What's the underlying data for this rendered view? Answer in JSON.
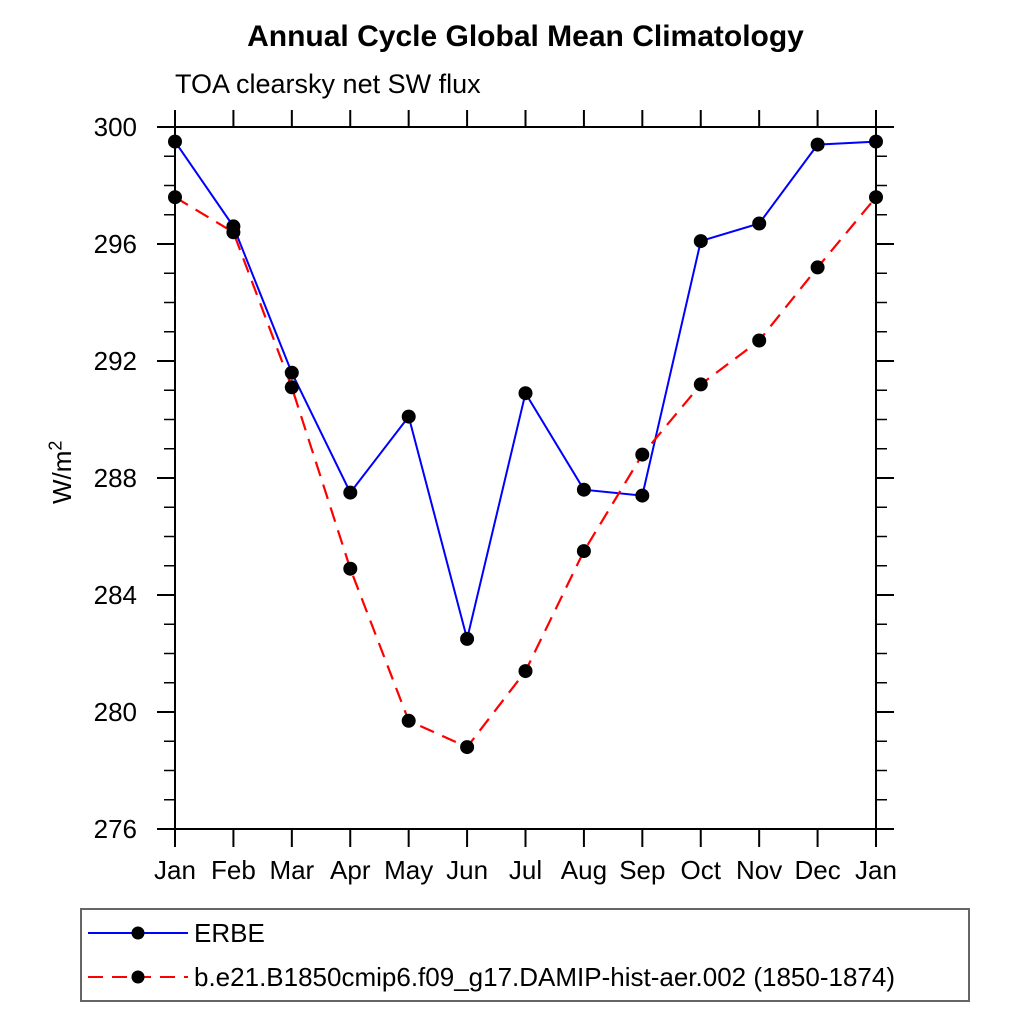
{
  "title": "Annual Cycle Global Mean Climatology",
  "subtitle": "TOA clearsky net SW flux",
  "ylabel": {
    "base": "W/m",
    "sup": "2"
  },
  "chart_data": {
    "type": "line",
    "title": "Annual Cycle Global Mean Climatology",
    "subtitle": "TOA clearsky net SW flux",
    "ylabel": "W/m²",
    "xlabel": "",
    "categories": [
      "Jan",
      "Feb",
      "Mar",
      "Apr",
      "May",
      "Jun",
      "Jul",
      "Aug",
      "Sep",
      "Oct",
      "Nov",
      "Dec",
      "Jan"
    ],
    "ylim": [
      276,
      300
    ],
    "ytick_major_step": 4,
    "ytick_minor_step": 1,
    "ytick_labels": [
      "276",
      "280",
      "284",
      "288",
      "292",
      "296",
      "300"
    ],
    "grid": false,
    "legend_position": "boxed-below-left",
    "series": [
      {
        "name": "ERBE",
        "color": "#0000ff",
        "line_style": "solid",
        "marker": "filled-circle",
        "marker_color": "#000000",
        "values": [
          299.5,
          296.6,
          291.6,
          287.5,
          290.1,
          282.5,
          290.9,
          287.6,
          287.4,
          296.1,
          296.7,
          299.4,
          299.5
        ]
      },
      {
        "name": "b.e21.B1850cmip6.f09_g17.DAMIP-hist-aer.002 (1850-1874)",
        "color": "#ff0000",
        "line_style": "dashed",
        "marker": "filled-circle",
        "marker_color": "#000000",
        "values": [
          297.6,
          296.4,
          291.1,
          284.9,
          279.7,
          278.8,
          281.4,
          285.5,
          288.8,
          291.2,
          292.7,
          295.2,
          297.6
        ]
      }
    ]
  }
}
